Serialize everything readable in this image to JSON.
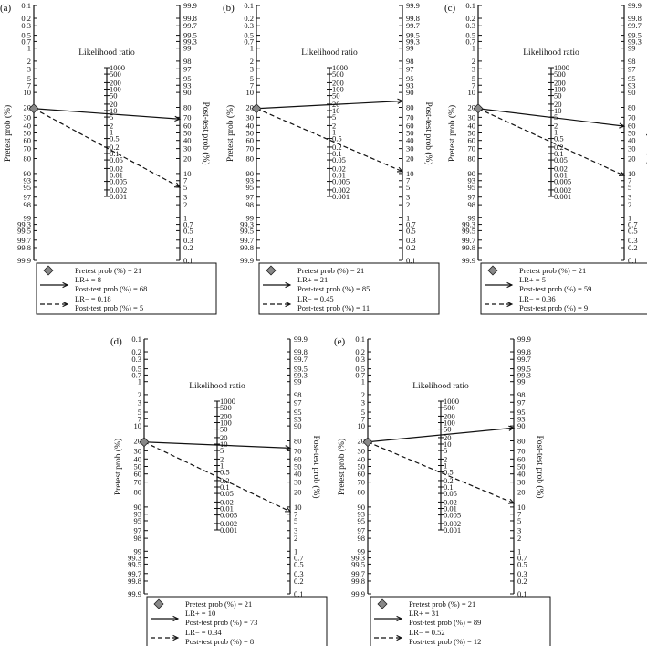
{
  "scales": {
    "pretest_label": "Pretest prob (%)",
    "posttest_label": "Post-test prob (%)",
    "lr_label": "Likelihood ratio",
    "prob_ticks": [
      "0.1",
      "0.2",
      "0.3",
      "0.5",
      "0.7",
      "1",
      "2",
      "3",
      "5",
      "7",
      "10",
      "20",
      "30",
      "40",
      "50",
      "60",
      "70",
      "80",
      "90",
      "93",
      "95",
      "97",
      "98",
      "99",
      "99.3",
      "99.5",
      "99.7",
      "99.8",
      "99.9"
    ],
    "prob_values": [
      0.1,
      0.2,
      0.3,
      0.5,
      0.7,
      1,
      2,
      3,
      5,
      7,
      10,
      20,
      30,
      40,
      50,
      60,
      70,
      80,
      90,
      93,
      95,
      97,
      98,
      99,
      99.3,
      99.5,
      99.7,
      99.8,
      99.9
    ],
    "lr_ticks": [
      "1000",
      "500",
      "200",
      "100",
      "50",
      "20",
      "10",
      "5",
      "2",
      "1",
      "0.5",
      "0.2",
      "0.1",
      "0.05",
      "0.02",
      "0.01",
      "0.005",
      "0.002",
      "0.001"
    ],
    "lr_values": [
      1000,
      500,
      200,
      100,
      50,
      20,
      10,
      5,
      2,
      1,
      0.5,
      0.2,
      0.1,
      0.05,
      0.02,
      0.01,
      0.005,
      0.002,
      0.001
    ]
  },
  "panels": [
    {
      "id": "a",
      "tag": "(a)",
      "pretest": 21,
      "lr_pos": 8,
      "post_pos": 68,
      "lr_neg": 0.18,
      "post_neg": 5,
      "legend": {
        "pretest": "Pretest prob (%) = 21",
        "lrpos": "LR+ = 8",
        "postpos": "Post-test prob (%) = 68",
        "lrneg": "LR− = 0.18",
        "postneg": "Post-test prob (%) = 5"
      }
    },
    {
      "id": "b",
      "tag": "(b)",
      "pretest": 21,
      "lr_pos": 21,
      "post_pos": 85,
      "lr_neg": 0.45,
      "post_neg": 11,
      "legend": {
        "pretest": "Pretest prob (%) = 21",
        "lrpos": "LR+ = 21",
        "postpos": "Post-test prob (%) = 85",
        "lrneg": "LR− = 0.45",
        "postneg": "Post-test prob (%) = 11"
      }
    },
    {
      "id": "c",
      "tag": "(c)",
      "pretest": 21,
      "lr_pos": 5,
      "post_pos": 59,
      "lr_neg": 0.36,
      "post_neg": 9,
      "legend": {
        "pretest": "Pretest prob (%) = 21",
        "lrpos": "LR+ = 5",
        "postpos": "Post-test prob (%) = 59",
        "lrneg": "LR− = 0.36",
        "postneg": "Post-test prob (%) = 9"
      }
    },
    {
      "id": "d",
      "tag": "(d)",
      "pretest": 21,
      "lr_pos": 10,
      "post_pos": 73,
      "lr_neg": 0.34,
      "post_neg": 8,
      "legend": {
        "pretest": "Pretest prob (%) = 21",
        "lrpos": "LR+ = 10",
        "postpos": "Post-test prob (%) = 73",
        "lrneg": "LR− = 0.34",
        "postneg": "Post-test prob (%) = 8"
      }
    },
    {
      "id": "e",
      "tag": "(e)",
      "pretest": 21,
      "lr_pos": 31,
      "post_pos": 89,
      "lr_neg": 0.52,
      "post_neg": 12,
      "legend": {
        "pretest": "Pretest prob (%) = 21",
        "lrpos": "LR+ = 31",
        "postpos": "Post-test prob (%) = 89",
        "lrneg": "LR− = 0.52",
        "postneg": "Post-test prob (%) = 12"
      }
    }
  ]
}
